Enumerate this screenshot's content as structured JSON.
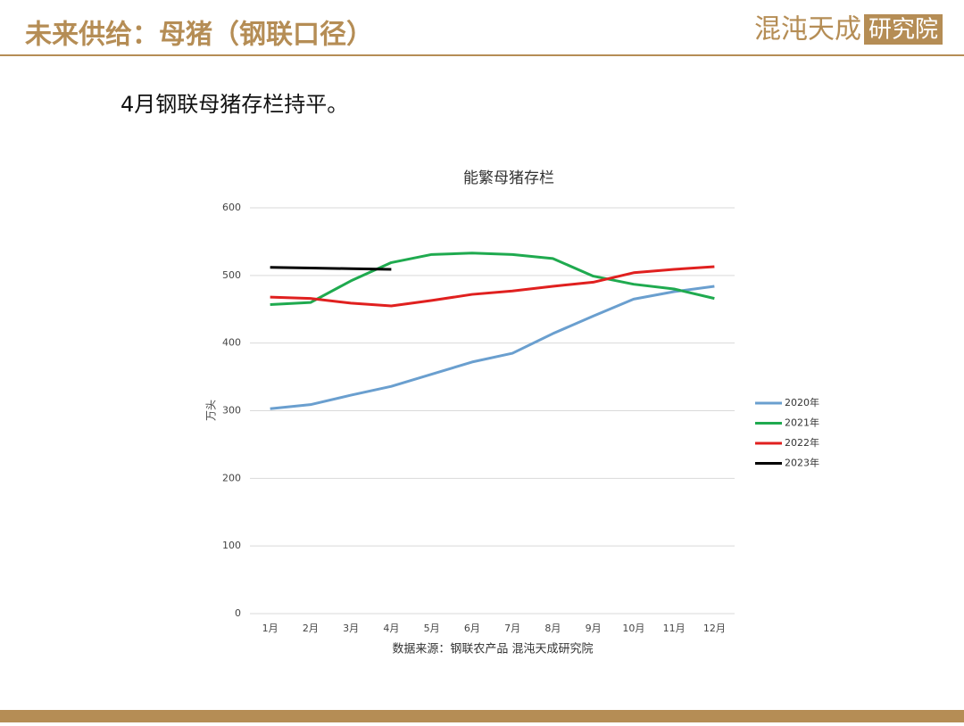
{
  "header": {
    "title": "未来供给：母猪（钢联口径）",
    "logo_main": "混沌天成",
    "logo_box": "研究院"
  },
  "subtitle": "4月钢联母猪存栏持平。",
  "chart_data": {
    "type": "line",
    "title": "能繁母猪存栏",
    "y_label": "万头",
    "source": "数据来源：钢联农产品 混沌天成研究院",
    "categories": [
      "1月",
      "2月",
      "3月",
      "4月",
      "5月",
      "6月",
      "7月",
      "8月",
      "9月",
      "10月",
      "11月",
      "12月"
    ],
    "series": [
      {
        "name": "2020年",
        "color": "#6a9fcf",
        "values": [
          303,
          309,
          323,
          336,
          354,
          372,
          385,
          414,
          440,
          465,
          476,
          484
        ]
      },
      {
        "name": "2021年",
        "color": "#1faa4f",
        "values": [
          457,
          460,
          492,
          519,
          531,
          533,
          531,
          525,
          499,
          487,
          480,
          466
        ]
      },
      {
        "name": "2022年",
        "color": "#e0201f",
        "values": [
          468,
          466,
          459,
          455,
          463,
          472,
          477,
          484,
          490,
          504,
          509,
          513
        ]
      },
      {
        "name": "2023年",
        "color": "#000000",
        "values": [
          512,
          511,
          510,
          509,
          null,
          null,
          null,
          null,
          null,
          null,
          null,
          null
        ]
      }
    ],
    "ylim": [
      0,
      600
    ],
    "yticks": [
      0,
      100,
      200,
      300,
      400,
      500,
      600
    ],
    "grid": true,
    "legend": "right"
  }
}
